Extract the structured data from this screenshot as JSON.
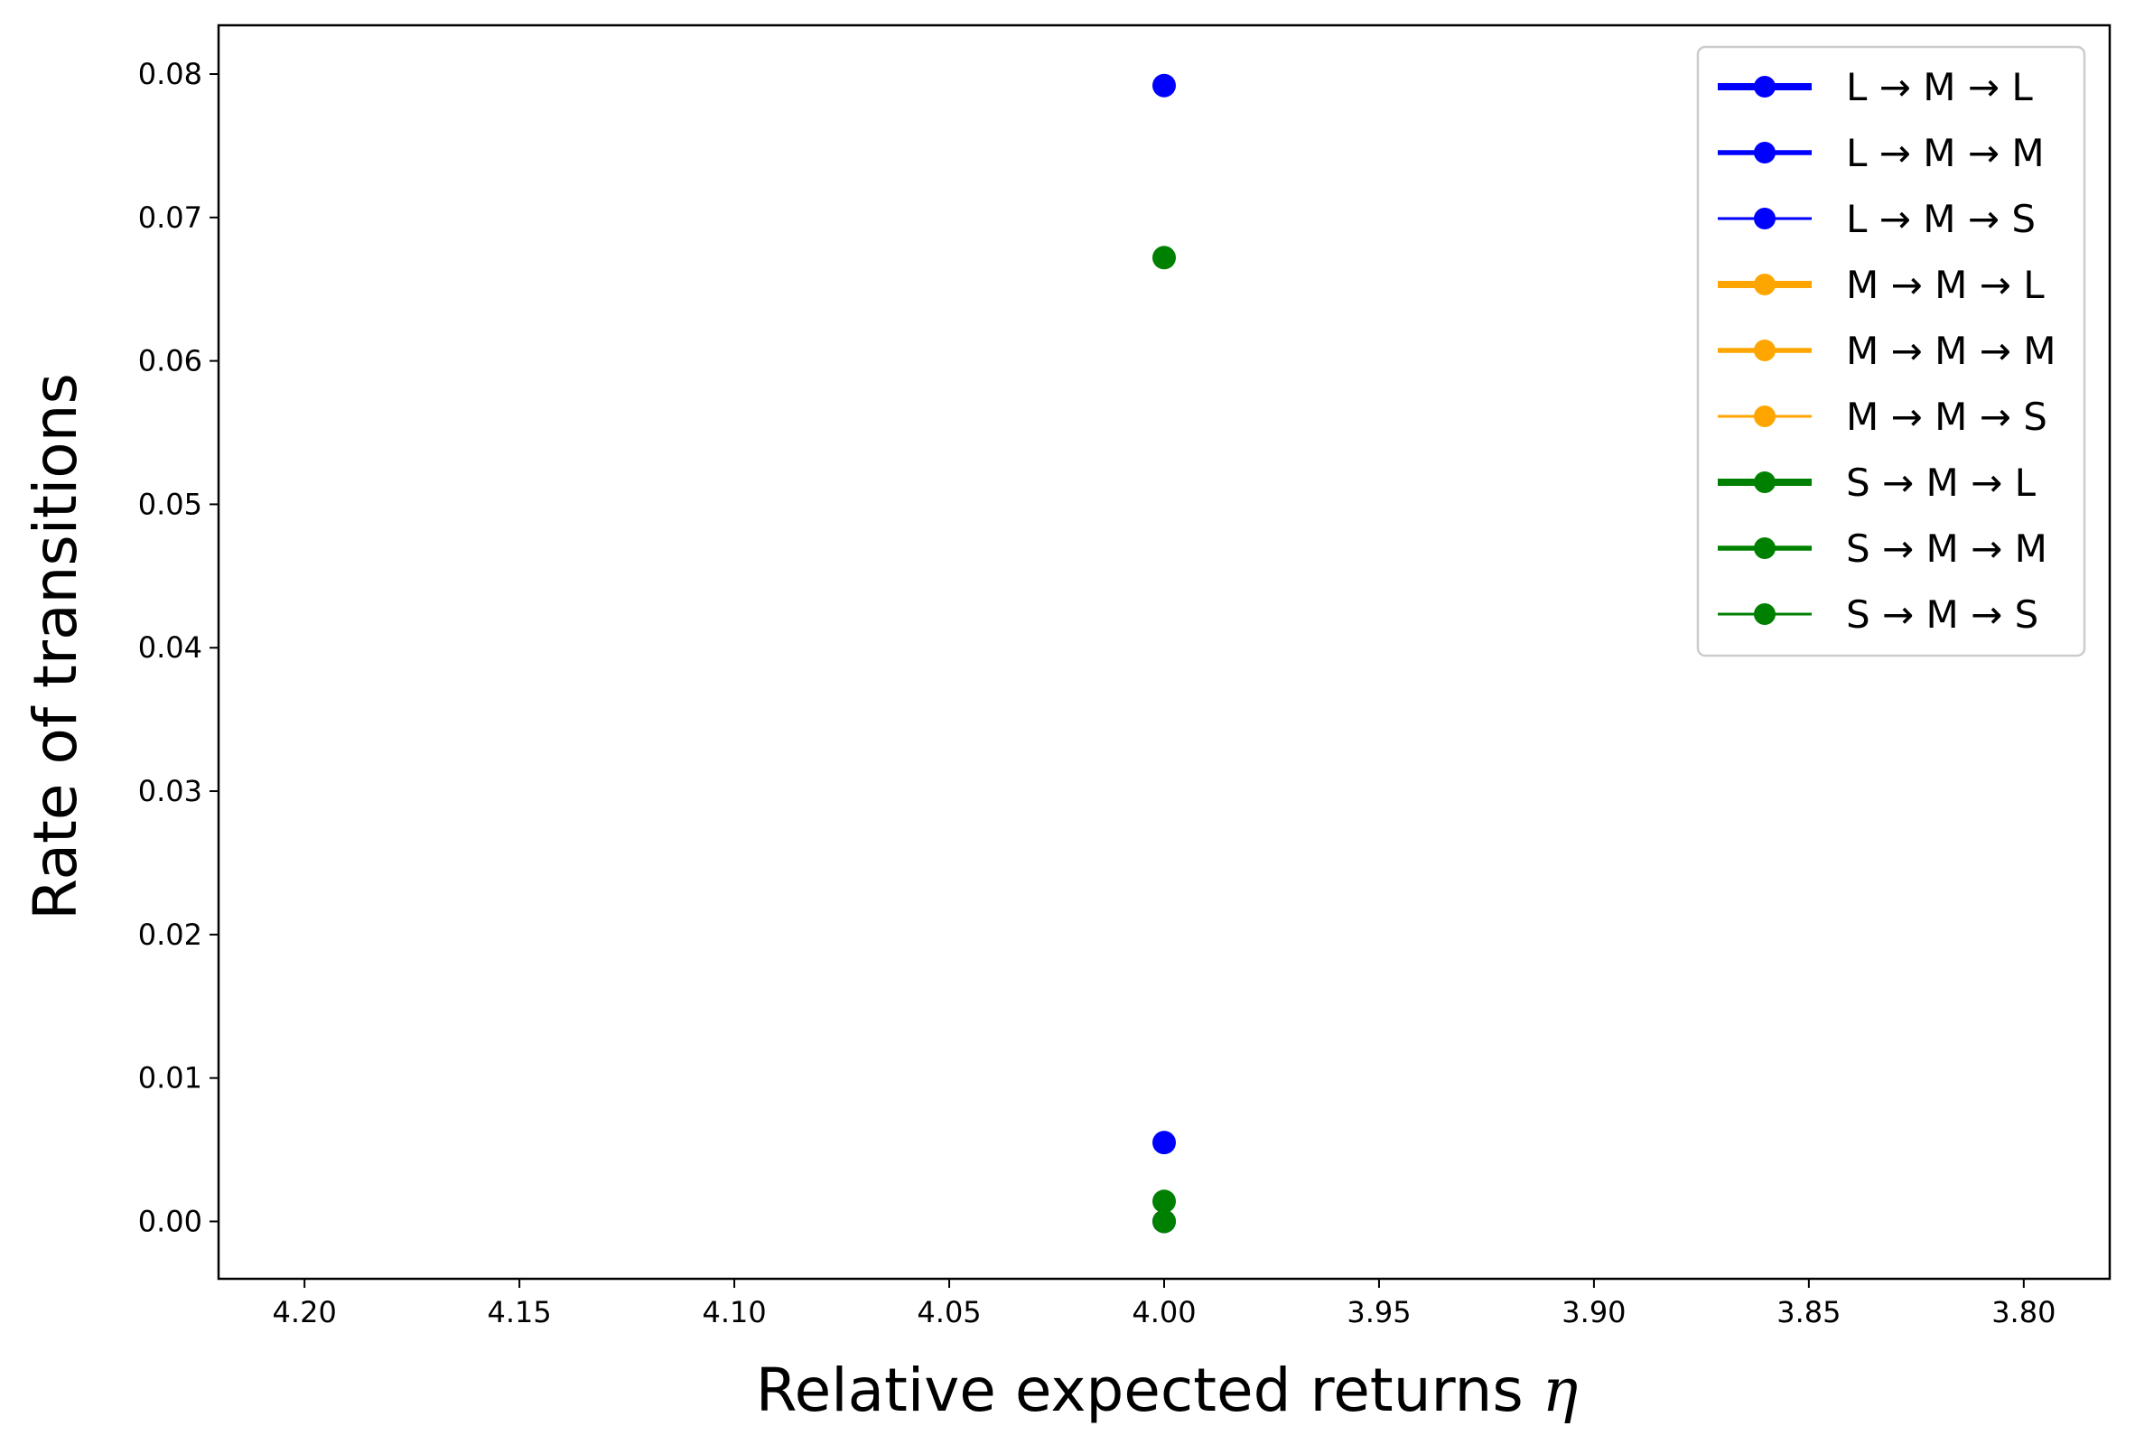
{
  "chart_data": {
    "type": "scatter",
    "title": "",
    "xlabel": "Relative expected returns",
    "xlabel_symbol": "η",
    "ylabel": "Rate of transitions",
    "xlim": [
      4.22,
      3.78
    ],
    "ylim": [
      -0.004,
      0.0834
    ],
    "x_inverted": true,
    "grid": false,
    "legend_position": "upper right",
    "x_ticks": [
      "4.20",
      "4.15",
      "4.10",
      "4.05",
      "4.00",
      "3.95",
      "3.90",
      "3.85",
      "3.80"
    ],
    "x_tick_values": [
      4.2,
      4.15,
      4.1,
      4.05,
      4.0,
      3.95,
      3.9,
      3.85,
      3.8
    ],
    "y_ticks": [
      "0.00",
      "0.01",
      "0.02",
      "0.03",
      "0.04",
      "0.05",
      "0.06",
      "0.07",
      "0.08"
    ],
    "y_tick_values": [
      0.0,
      0.01,
      0.02,
      0.03,
      0.04,
      0.05,
      0.06,
      0.07,
      0.08
    ],
    "series": [
      {
        "name": "L → M → L",
        "color": "#0000ff",
        "line_weight": "thick",
        "points": [
          {
            "x": 4.0,
            "y": 0.0792
          }
        ]
      },
      {
        "name": "L → M → M",
        "color": "#0000ff",
        "line_weight": "medium",
        "points": [
          {
            "x": 4.0,
            "y": 0.0055
          }
        ]
      },
      {
        "name": "L → M → S",
        "color": "#0000ff",
        "line_weight": "thin",
        "points": [
          {
            "x": 4.0,
            "y": 0.0
          }
        ]
      },
      {
        "name": "M → M → L",
        "color": "#ffa500",
        "line_weight": "thick",
        "points": []
      },
      {
        "name": "M → M → M",
        "color": "#ffa500",
        "line_weight": "medium",
        "points": []
      },
      {
        "name": "M → M → S",
        "color": "#ffa500",
        "line_weight": "thin",
        "points": []
      },
      {
        "name": "S → M → L",
        "color": "#008000",
        "line_weight": "thick",
        "points": [
          {
            "x": 4.0,
            "y": 0.0672
          }
        ]
      },
      {
        "name": "S → M → M",
        "color": "#008000",
        "line_weight": "medium",
        "points": [
          {
            "x": 4.0,
            "y": 0.0014
          }
        ]
      },
      {
        "name": "S → M → S",
        "color": "#008000",
        "line_weight": "thin",
        "points": [
          {
            "x": 4.0,
            "y": 0.0
          }
        ]
      }
    ]
  }
}
